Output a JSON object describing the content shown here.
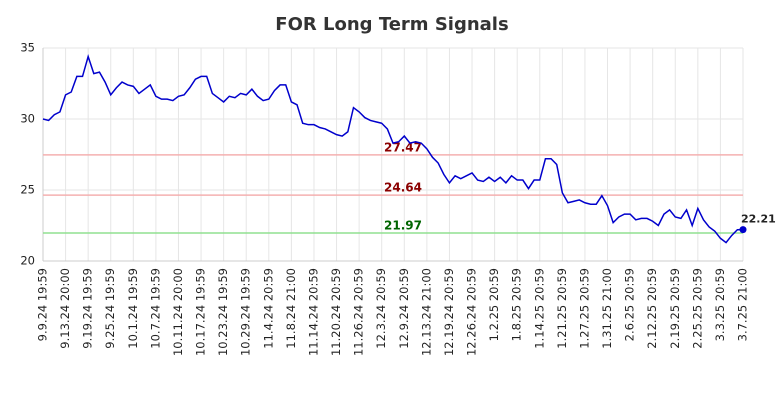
{
  "chart_data": {
    "type": "line",
    "title": "FOR Long Term Signals",
    "categories": [
      "9.9.24 19:59",
      null,
      null,
      null,
      "9.13.24 20:00",
      null,
      null,
      null,
      "9.19.24 19:59",
      null,
      null,
      null,
      "9.25.24 19:59",
      null,
      null,
      null,
      "10.1.24 19:59",
      null,
      null,
      null,
      "10.7.24 19:59",
      null,
      null,
      null,
      "10.11.24 20:00",
      null,
      null,
      null,
      "10.17.24 19:59",
      null,
      null,
      null,
      "10.23.24 19:59",
      null,
      null,
      null,
      "10.29.24 19:59",
      null,
      null,
      null,
      "11.4.24 20:59",
      null,
      null,
      null,
      "11.8.24 21:00",
      null,
      null,
      null,
      "11.14.24 20:59",
      null,
      null,
      null,
      "11.20.24 20:59",
      null,
      null,
      null,
      "11.26.24 20:59",
      null,
      null,
      null,
      "12.3.24 20:59",
      null,
      null,
      null,
      "12.9.24 20:59",
      null,
      null,
      null,
      "12.13.24 21:00",
      null,
      null,
      null,
      "12.19.24 20:59",
      null,
      null,
      null,
      "12.26.24 20:59",
      null,
      null,
      null,
      "1.2.25 20:59",
      null,
      null,
      null,
      "1.8.25 20:59",
      null,
      null,
      null,
      "1.14.25 20:59",
      null,
      null,
      null,
      "1.21.25 20:59",
      null,
      null,
      null,
      "1.27.25 20:59",
      null,
      null,
      null,
      "1.31.25 21:00",
      null,
      null,
      null,
      "2.6.25 20:59",
      null,
      null,
      null,
      "2.12.25 20:59",
      null,
      null,
      null,
      "2.19.25 20:59",
      null,
      null,
      null,
      "2.25.25 20:59",
      null,
      null,
      null,
      "3.3.25 20:59",
      null,
      null,
      null,
      "3.7.25 21:00"
    ],
    "values": [
      30.0,
      29.9,
      30.3,
      30.5,
      31.7,
      31.9,
      33.0,
      33.0,
      34.4,
      33.2,
      33.3,
      32.6,
      31.7,
      32.2,
      32.6,
      32.4,
      32.3,
      31.8,
      32.1,
      32.4,
      31.6,
      31.4,
      31.4,
      31.3,
      31.6,
      31.7,
      32.2,
      32.8,
      33.0,
      33.0,
      31.8,
      31.5,
      31.2,
      31.6,
      31.5,
      31.8,
      31.7,
      32.1,
      31.6,
      31.3,
      31.4,
      32.0,
      32.4,
      32.4,
      31.2,
      31.0,
      29.7,
      29.6,
      29.6,
      29.4,
      29.3,
      29.1,
      28.9,
      28.8,
      29.1,
      30.8,
      30.5,
      30.1,
      29.9,
      29.8,
      29.7,
      29.3,
      28.3,
      28.4,
      28.8,
      28.3,
      28.4,
      28.3,
      27.9,
      27.3,
      26.9,
      26.1,
      25.5,
      26.0,
      25.8,
      26.0,
      26.2,
      25.7,
      25.6,
      25.9,
      25.6,
      25.9,
      25.5,
      26.0,
      25.7,
      25.7,
      25.1,
      25.7,
      25.7,
      27.2,
      27.2,
      26.8,
      24.8,
      24.1,
      24.2,
      24.3,
      24.1,
      24.0,
      24.0,
      24.6,
      23.9,
      22.7,
      23.1,
      23.3,
      23.3,
      22.9,
      23.0,
      23.0,
      22.8,
      22.5,
      23.3,
      23.6,
      23.1,
      23.0,
      23.6,
      22.5,
      23.7,
      22.9,
      22.4,
      22.1,
      21.6,
      21.3,
      21.8,
      22.2,
      22.21
    ],
    "color": "#0000cc",
    "levels": [
      {
        "value": 27.47,
        "color": "#f4b0b0",
        "label_color": "#8b0000"
      },
      {
        "value": 24.64,
        "color": "#f4b0b0",
        "label_color": "#8b0000"
      },
      {
        "value": 21.97,
        "color": "#90e090",
        "label_color": "#006400"
      }
    ],
    "ylim": [
      20,
      35
    ],
    "yticks": [
      20,
      25,
      30,
      35
    ],
    "grid": true
  }
}
